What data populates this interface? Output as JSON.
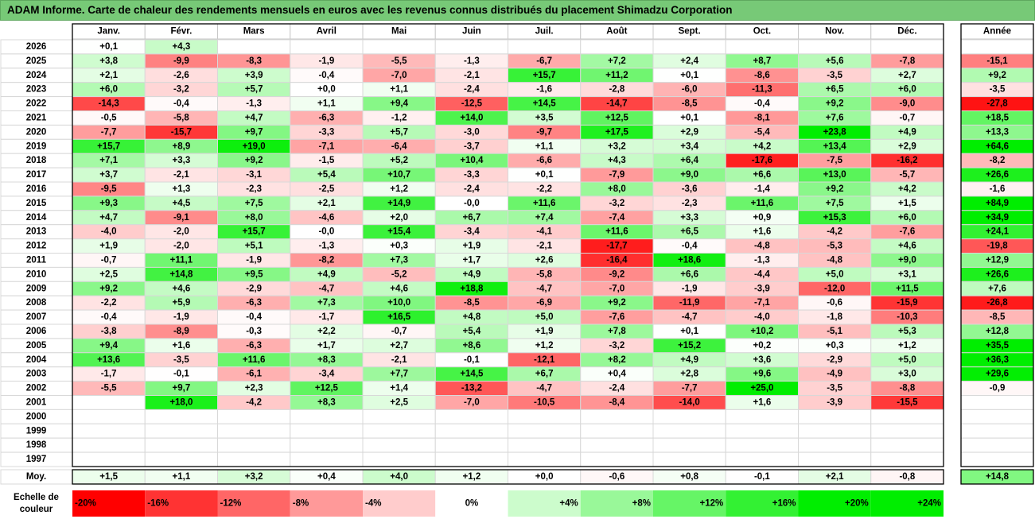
{
  "title": "ADAM Informe. Carte de chaleur des rendements mensuels en euros avec les revenus connus distribués du placement Shimadzu Corporation",
  "colors": {
    "title_bg": "#77c977",
    "max_red": "#ff0000",
    "max_green": "#00ee00"
  },
  "chart_data": {
    "type": "heatmap",
    "months": [
      "Janv.",
      "Févr.",
      "Mars",
      "Avril",
      "Mai",
      "Juin",
      "Juil.",
      "Août",
      "Sept.",
      "Oct.",
      "Nov.",
      "Déc."
    ],
    "year_header": "Année",
    "years": [
      "2026",
      "2025",
      "2024",
      "2023",
      "2022",
      "2021",
      "2020",
      "2019",
      "2018",
      "2017",
      "2016",
      "2015",
      "2014",
      "2013",
      "2012",
      "2011",
      "2010",
      "2009",
      "2008",
      "2007",
      "2006",
      "2005",
      "2004",
      "2003",
      "2002",
      "2001",
      "2000",
      "1999",
      "1998",
      "1997"
    ],
    "values": [
      [
        "+0,1",
        "+4,3",
        "",
        "",
        "",
        "",
        "",
        "",
        "",
        "",
        "",
        ""
      ],
      [
        "+3,8",
        "-9,9",
        "-8,3",
        "-1,9",
        "-5,5",
        "-1,3",
        "-6,7",
        "+7,2",
        "+2,4",
        "+8,7",
        "+5,6",
        "-7,8"
      ],
      [
        "+2,1",
        "-2,6",
        "+3,9",
        "-0,4",
        "-7,0",
        "-2,1",
        "+15,7",
        "+11,2",
        "+0,1",
        "-8,6",
        "-3,5",
        "+2,7"
      ],
      [
        "+6,0",
        "-3,2",
        "+5,7",
        "+0,0",
        "+1,1",
        "-2,4",
        "-1,6",
        "-2,8",
        "-6,0",
        "-11,3",
        "+6,5",
        "+6,0"
      ],
      [
        "-14,3",
        "-0,4",
        "-1,3",
        "+1,1",
        "+9,4",
        "-12,5",
        "+14,5",
        "-14,7",
        "-8,5",
        "-0,4",
        "+9,2",
        "-9,0"
      ],
      [
        "-0,5",
        "-5,8",
        "+4,7",
        "-6,3",
        "-1,2",
        "+14,0",
        "+3,5",
        "+12,5",
        "+0,1",
        "-8,1",
        "+7,6",
        "-0,7"
      ],
      [
        "-7,7",
        "-15,7",
        "+9,7",
        "-3,3",
        "+5,7",
        "-3,0",
        "-9,7",
        "+17,5",
        "+2,9",
        "-5,4",
        "+23,8",
        "+4,9"
      ],
      [
        "+15,7",
        "+8,9",
        "+19,0",
        "-7,1",
        "-6,4",
        "-3,7",
        "+1,1",
        "+3,2",
        "+3,4",
        "+4,2",
        "+13,4",
        "+2,9"
      ],
      [
        "+7,1",
        "+3,3",
        "+9,2",
        "-1,5",
        "+5,2",
        "+10,4",
        "-6,6",
        "+4,3",
        "+6,4",
        "-17,6",
        "-7,5",
        "-16,2"
      ],
      [
        "+3,7",
        "-2,1",
        "-3,1",
        "+5,4",
        "+10,7",
        "-3,3",
        "+0,1",
        "-7,9",
        "+9,0",
        "+6,6",
        "+13,0",
        "-5,7"
      ],
      [
        "-9,5",
        "+1,3",
        "-2,3",
        "-2,5",
        "+1,2",
        "-2,4",
        "-2,2",
        "+8,0",
        "-3,6",
        "-1,4",
        "+9,2",
        "+4,2"
      ],
      [
        "+9,3",
        "+4,5",
        "+7,5",
        "+2,1",
        "+14,9",
        "-0,0",
        "+11,6",
        "-3,2",
        "-2,3",
        "+11,6",
        "+7,5",
        "+1,5"
      ],
      [
        "+4,7",
        "-9,1",
        "+8,0",
        "-4,6",
        "+2,0",
        "+6,7",
        "+7,4",
        "-7,4",
        "+3,3",
        "+0,9",
        "+15,3",
        "+6,0"
      ],
      [
        "-4,0",
        "-2,0",
        "+15,7",
        "-0,0",
        "+15,4",
        "-3,4",
        "-4,1",
        "+11,6",
        "+6,5",
        "+1,6",
        "-4,2",
        "-7,6"
      ],
      [
        "+1,9",
        "-2,0",
        "+5,1",
        "-1,3",
        "+0,3",
        "+1,9",
        "-2,1",
        "-17,7",
        "-0,4",
        "-4,8",
        "-5,3",
        "+4,6"
      ],
      [
        "-0,7",
        "+11,1",
        "-1,9",
        "-8,2",
        "+7,3",
        "+1,7",
        "+2,6",
        "-16,4",
        "+18,6",
        "-1,3",
        "-4,8",
        "+9,0"
      ],
      [
        "+2,5",
        "+14,8",
        "+9,5",
        "+4,9",
        "-5,2",
        "+4,9",
        "-5,8",
        "-9,2",
        "+6,6",
        "-4,4",
        "+5,0",
        "+3,1"
      ],
      [
        "+9,2",
        "+4,6",
        "-2,9",
        "-4,7",
        "+4,6",
        "+18,8",
        "-4,7",
        "-7,0",
        "-1,9",
        "-3,9",
        "-12,0",
        "+11,5"
      ],
      [
        "-2,2",
        "+5,9",
        "-6,3",
        "+7,3",
        "+10,0",
        "-8,5",
        "-6,9",
        "+9,2",
        "-11,9",
        "-7,1",
        "-0,6",
        "-15,9"
      ],
      [
        "-0,4",
        "-1,9",
        "-0,4",
        "-1,7",
        "+16,5",
        "+4,8",
        "+5,0",
        "-7,6",
        "-4,7",
        "-4,0",
        "-1,8",
        "-10,3"
      ],
      [
        "-3,8",
        "-8,9",
        "-0,3",
        "+2,2",
        "-0,7",
        "+5,4",
        "+1,9",
        "+7,8",
        "+0,1",
        "+10,2",
        "-5,1",
        "+5,3"
      ],
      [
        "+9,4",
        "+1,6",
        "-6,3",
        "+1,7",
        "+2,7",
        "+8,6",
        "+1,2",
        "-3,2",
        "+15,2",
        "+0,2",
        "+0,3",
        "+1,2"
      ],
      [
        "+13,6",
        "-3,5",
        "+11,6",
        "+8,3",
        "-2,1",
        "-0,1",
        "-12,1",
        "+8,2",
        "+4,9",
        "+3,6",
        "-2,9",
        "+5,0"
      ],
      [
        "-1,7",
        "-0,1",
        "-6,1",
        "-3,4",
        "+7,7",
        "+14,5",
        "+6,7",
        "+0,4",
        "+2,8",
        "+9,6",
        "-4,9",
        "+3,0"
      ],
      [
        "-5,5",
        "+9,7",
        "+2,3",
        "+12,5",
        "+1,4",
        "-13,2",
        "-4,7",
        "-2,4",
        "-7,7",
        "+25,0",
        "-3,5",
        "-8,8"
      ],
      [
        "",
        "+18,0",
        "-4,2",
        "+8,3",
        "+2,5",
        "-7,0",
        "-10,5",
        "-8,4",
        "-14,0",
        "+1,6",
        "-3,9",
        "-15,5"
      ],
      [
        "",
        "",
        "",
        "",
        "",
        "",
        "",
        "",
        "",
        "",
        "",
        ""
      ],
      [
        "",
        "",
        "",
        "",
        "",
        "",
        "",
        "",
        "",
        "",
        "",
        ""
      ],
      [
        "",
        "",
        "",
        "",
        "",
        "",
        "",
        "",
        "",
        "",
        "",
        ""
      ],
      [
        "",
        "",
        "",
        "",
        "",
        "",
        "",
        "",
        "",
        "",
        "",
        ""
      ]
    ],
    "annual": [
      "",
      "-15,1",
      "+9,2",
      "-3,5",
      "-27,8",
      "+18,5",
      "+13,3",
      "+64,6",
      "-8,2",
      "+26,6",
      "-1,6",
      "+84,9",
      "+34,9",
      "+24,1",
      "-19,8",
      "+12,9",
      "+26,6",
      "+7,6",
      "-26,8",
      "-8,5",
      "+12,8",
      "+35,5",
      "+36,3",
      "+29,6",
      "-0,9",
      "",
      "",
      "",
      "",
      ""
    ],
    "average_label": "Moy.",
    "average": [
      "+1,5",
      "+1,1",
      "+3,2",
      "+0,4",
      "+4,0",
      "+1,2",
      "+0,0",
      "-0,6",
      "+0,8",
      "-0,1",
      "+2,1",
      "-0,8"
    ],
    "average_annual": "+14,8",
    "color_scale": {
      "label_line1": "Echelle de",
      "label_line2": "couleur",
      "stops": [
        "-20%",
        "-16%",
        "-12%",
        "-8%",
        "-4%",
        "0%",
        "+4%",
        "+8%",
        "+12%",
        "+16%",
        "+20%",
        "+24%"
      ],
      "stop_values": [
        -20,
        -16,
        -12,
        -8,
        -4,
        0,
        4,
        8,
        12,
        16,
        20,
        24
      ]
    }
  }
}
